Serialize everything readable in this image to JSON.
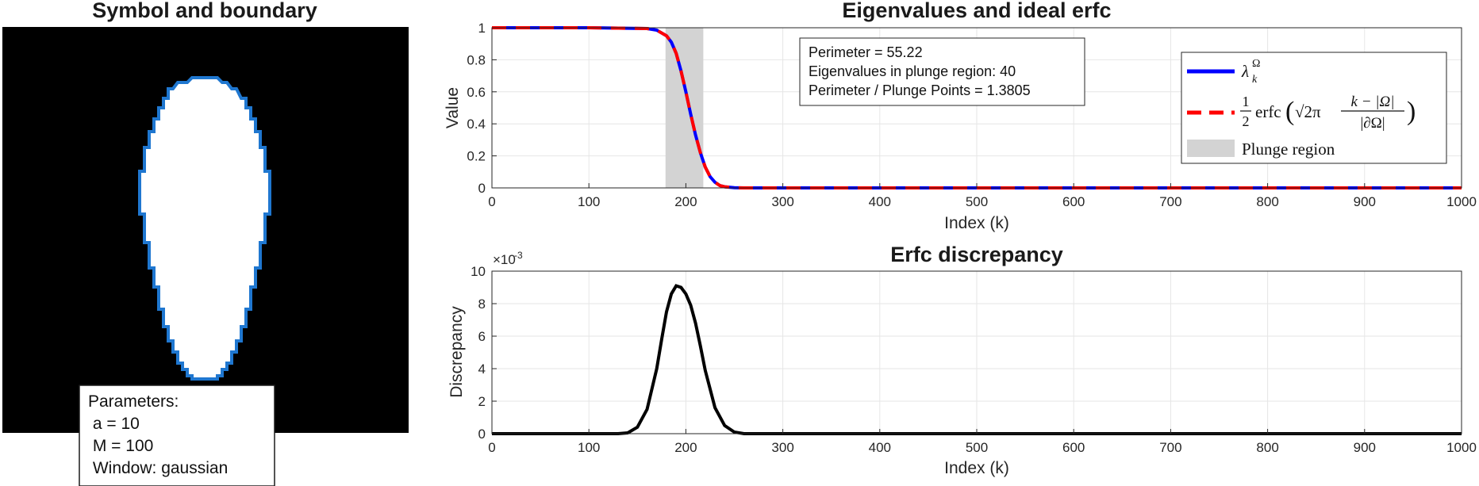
{
  "symbol_panel": {
    "title": "Symbol and boundary",
    "colors": {
      "background": "#000000",
      "region": "#ffffff",
      "boundary": "#1f77d0"
    },
    "parameters": {
      "header": "Parameters:",
      "lines": [
        " a = 10",
        " M = 100",
        " Window: gaussian"
      ]
    }
  },
  "chart_data": [
    {
      "id": "eigen",
      "type": "line",
      "title": "Eigenvalues and ideal erfc",
      "xlabel": "Index (k)",
      "ylabel": "Value",
      "xlim": [
        0,
        1000
      ],
      "ylim": [
        0,
        1
      ],
      "xticks": [
        0,
        100,
        200,
        300,
        400,
        500,
        600,
        700,
        800,
        900,
        1000
      ],
      "yticks": [
        0,
        0.2,
        0.4,
        0.6,
        0.8,
        1
      ],
      "ytick_labels": [
        "0",
        "0.2",
        "0.4",
        "0.6",
        "0.8",
        "1"
      ],
      "grid": true,
      "legend_position": "top-right",
      "series": [
        {
          "id": "lambda",
          "color": "#0000ff",
          "style": "solid",
          "x": [
            0,
            100,
            160,
            170,
            180,
            185,
            190,
            195,
            200,
            205,
            210,
            215,
            220,
            225,
            230,
            235,
            240,
            250,
            260,
            300,
            400,
            500,
            600,
            700,
            800,
            900,
            1000
          ],
          "y": [
            1,
            1,
            0.995,
            0.985,
            0.95,
            0.91,
            0.84,
            0.73,
            0.6,
            0.46,
            0.33,
            0.22,
            0.13,
            0.07,
            0.035,
            0.015,
            0.007,
            0.001,
            0,
            0,
            0,
            0,
            0,
            0,
            0,
            0,
            0
          ]
        },
        {
          "id": "erfc",
          "color": "#ff0000",
          "style": "dashed",
          "x": [
            0,
            100,
            160,
            170,
            180,
            185,
            190,
            195,
            200,
            205,
            210,
            215,
            220,
            225,
            230,
            235,
            240,
            250,
            260,
            300,
            400,
            500,
            600,
            700,
            800,
            900,
            1000
          ],
          "y": [
            1,
            1,
            0.995,
            0.985,
            0.95,
            0.91,
            0.84,
            0.73,
            0.6,
            0.46,
            0.33,
            0.22,
            0.13,
            0.07,
            0.035,
            0.015,
            0.007,
            0.001,
            0,
            0,
            0,
            0,
            0,
            0,
            0,
            0,
            0
          ]
        }
      ],
      "plunge_region": {
        "x": [
          179,
          218
        ],
        "color": "#d3d3d3"
      },
      "annotation": {
        "lines": [
          "Perimeter = 55.22",
          "Eigenvalues in plunge region: 40",
          "Perimeter / Plunge Points = 1.3805"
        ]
      },
      "legend": {
        "lambda_symbol": "λ",
        "lambda_sub": "k",
        "lambda_sup": "Ω",
        "erfc_num": "1",
        "erfc_den": "2",
        "erfc_fn": "erfc",
        "erfc_sqrt": "√2π",
        "erfc_frac_num": "k − |Ω|",
        "erfc_frac_den": "|∂Ω|",
        "plunge_label": "Plunge region"
      }
    },
    {
      "id": "disc",
      "type": "line",
      "title": "Erfc discrepancy",
      "xlabel": "Index (k)",
      "ylabel": "Discrepancy",
      "xlim": [
        0,
        1000
      ],
      "ylim": [
        0,
        10
      ],
      "xticks": [
        0,
        100,
        200,
        300,
        400,
        500,
        600,
        700,
        800,
        900,
        1000
      ],
      "yticks": [
        0,
        2,
        4,
        6,
        8,
        10
      ],
      "exponent_label": "×10",
      "exponent_power": "-3",
      "grid": true,
      "series": [
        {
          "id": "discrepancy",
          "color": "#000000",
          "style": "solid",
          "x": [
            0,
            130,
            140,
            150,
            160,
            170,
            175,
            180,
            185,
            190,
            195,
            200,
            205,
            210,
            215,
            220,
            230,
            240,
            250,
            260,
            1000
          ],
          "y": [
            0,
            0,
            0.05,
            0.4,
            1.5,
            4.0,
            5.8,
            7.5,
            8.6,
            9.1,
            9.0,
            8.6,
            7.9,
            6.8,
            5.4,
            3.9,
            1.6,
            0.5,
            0.1,
            0,
            0
          ]
        }
      ]
    }
  ]
}
